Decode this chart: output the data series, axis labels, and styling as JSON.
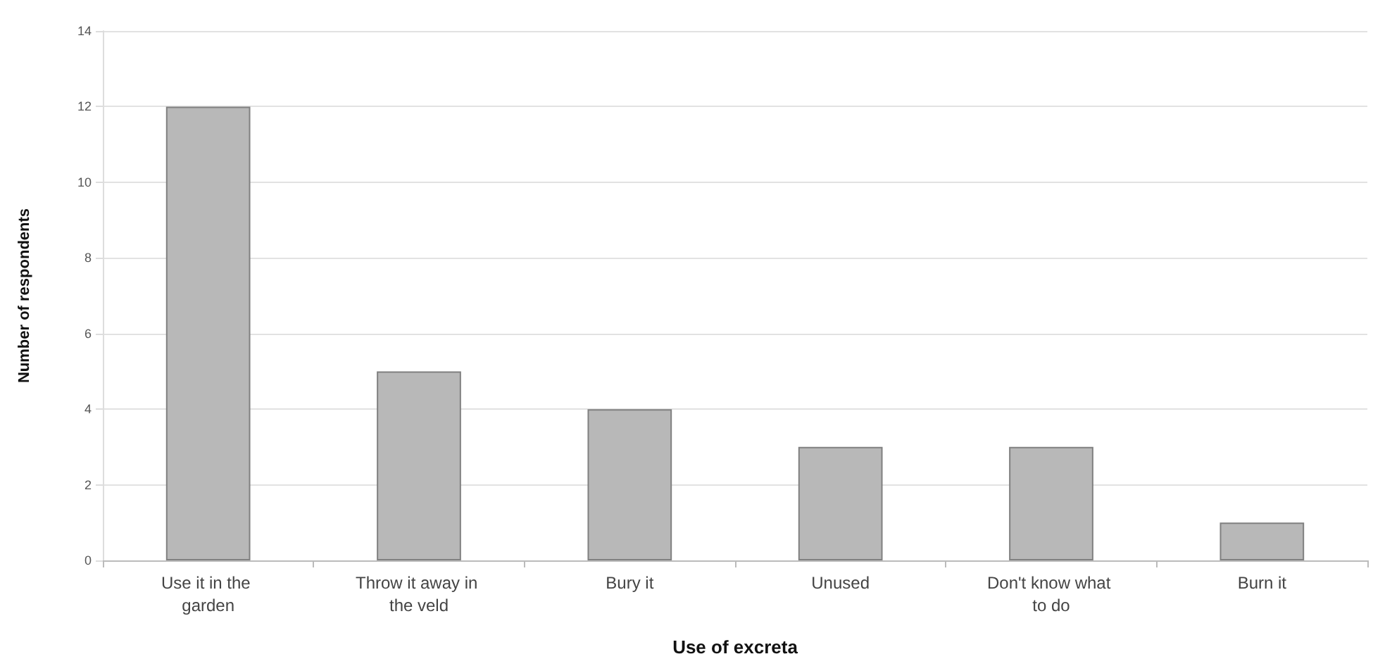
{
  "chart_data": {
    "type": "bar",
    "xlabel": "Use of excreta",
    "ylabel": "Number of respondents",
    "categories": [
      "Use it in the garden",
      "Throw it away in the veld",
      "Bury it",
      "Unused",
      "Don't know what to do",
      "Burn it"
    ],
    "values": [
      12,
      5,
      4,
      3,
      3,
      1
    ],
    "color": "#b8b8b8",
    "ylim": [
      0,
      14
    ],
    "yticks": [
      0,
      2,
      4,
      6,
      8,
      10,
      12,
      14
    ],
    "grid": "y"
  }
}
